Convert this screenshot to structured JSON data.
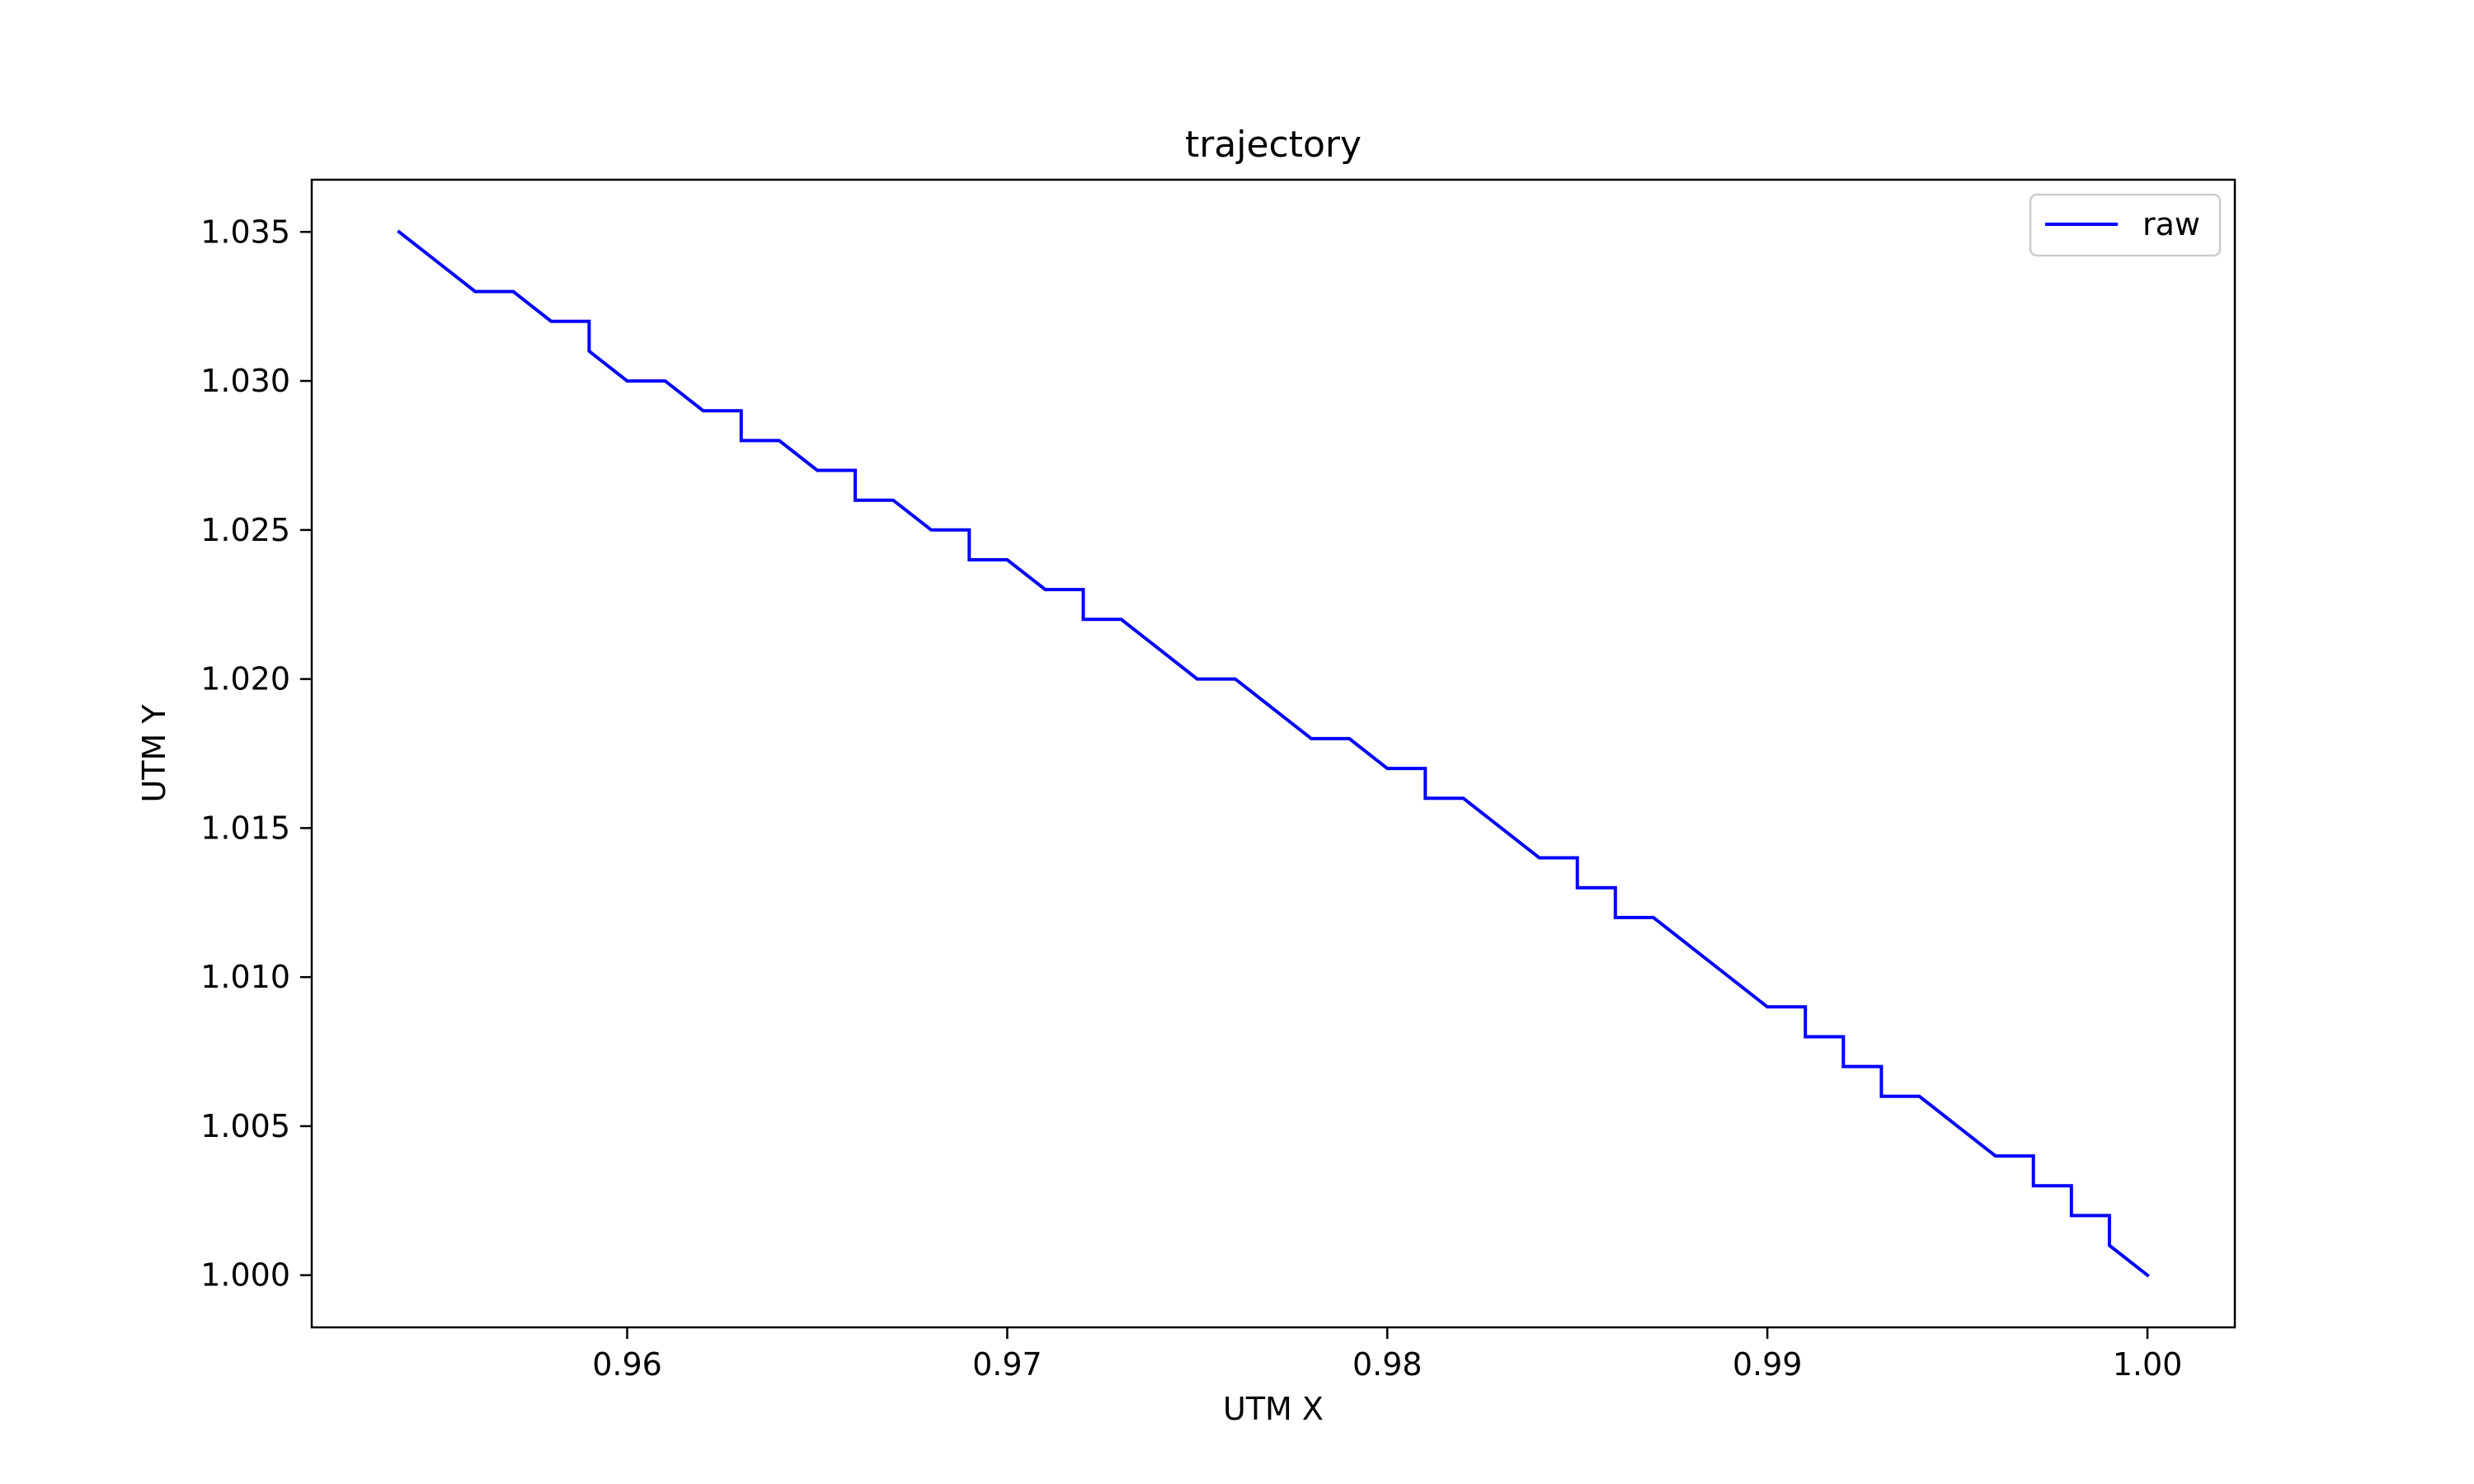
{
  "chart_data": {
    "type": "line",
    "title": "trajectory",
    "xlabel": "UTM X",
    "ylabel": "UTM Y",
    "xlim": [
      0.9517,
      1.0023
    ],
    "ylim": [
      0.99825,
      1.03675
    ],
    "xticks": [
      0.96,
      0.97,
      0.98,
      0.99,
      1.0
    ],
    "xtick_labels": [
      "0.96",
      "0.97",
      "0.98",
      "0.99",
      "1.00"
    ],
    "yticks": [
      1.0,
      1.005,
      1.01,
      1.015,
      1.02,
      1.025,
      1.03,
      1.035
    ],
    "ytick_labels": [
      "1.000",
      "1.005",
      "1.010",
      "1.015",
      "1.020",
      "1.025",
      "1.030",
      "1.035"
    ],
    "grid": false,
    "legend_position": "top-right",
    "series": [
      {
        "name": "raw",
        "color": "#0000ff",
        "x": [
          0.954,
          0.956,
          0.957,
          0.958,
          0.959,
          0.959,
          0.96,
          0.961,
          0.962,
          0.963,
          0.963,
          0.964,
          0.965,
          0.966,
          0.966,
          0.967,
          0.968,
          0.969,
          0.969,
          0.97,
          0.971,
          0.972,
          0.972,
          0.973,
          0.975,
          0.976,
          0.978,
          0.979,
          0.98,
          0.981,
          0.981,
          0.982,
          0.984,
          0.985,
          0.985,
          0.986,
          0.986,
          0.987,
          0.99,
          0.991,
          0.991,
          0.992,
          0.992,
          0.993,
          0.993,
          0.994,
          0.996,
          0.997,
          0.997,
          0.998,
          0.998,
          0.999,
          0.999,
          1.0
        ],
        "y": [
          1.035,
          1.033,
          1.033,
          1.032,
          1.032,
          1.031,
          1.03,
          1.03,
          1.029,
          1.029,
          1.028,
          1.028,
          1.027,
          1.027,
          1.026,
          1.026,
          1.025,
          1.025,
          1.024,
          1.024,
          1.023,
          1.023,
          1.022,
          1.022,
          1.02,
          1.02,
          1.018,
          1.018,
          1.017,
          1.017,
          1.016,
          1.016,
          1.014,
          1.014,
          1.013,
          1.013,
          1.012,
          1.012,
          1.009,
          1.009,
          1.008,
          1.008,
          1.007,
          1.007,
          1.006,
          1.006,
          1.004,
          1.004,
          1.003,
          1.003,
          1.002,
          1.002,
          1.001,
          1.0
        ]
      }
    ]
  }
}
